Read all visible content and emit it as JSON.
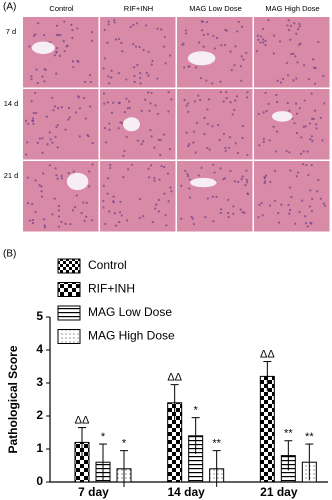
{
  "panel_a": {
    "label": "(A)",
    "columns": [
      "Control",
      "RIF+INH",
      "MAG Low Dose",
      "MAG High Dose"
    ],
    "rows": [
      "7 d",
      "14 d",
      "21 d"
    ]
  },
  "chart_data": {
    "type": "bar",
    "panel_label": "(B)",
    "ylabel": "Pathological Score",
    "categories": [
      "7 day",
      "14 day",
      "21 day"
    ],
    "series": [
      {
        "name": "Control",
        "color": "#000000",
        "pattern": "checker",
        "values": [
          0,
          0,
          0
        ]
      },
      {
        "name": "RIF+INH",
        "color": "#000000",
        "pattern": "checker-large",
        "values": [
          1.2,
          2.4,
          3.2
        ],
        "errors": [
          0.45,
          0.55,
          0.45
        ],
        "annotations": [
          "ΔΔ",
          "ΔΔ",
          "ΔΔ"
        ]
      },
      {
        "name": "MAG Low Dose",
        "color": "#000000",
        "pattern": "hstripe",
        "values": [
          0.6,
          1.4,
          0.8
        ],
        "errors": [
          0.55,
          0.55,
          0.45
        ],
        "annotations": [
          "*",
          "*",
          "**"
        ]
      },
      {
        "name": "MAG High Dose",
        "color": "#000000",
        "pattern": "dots",
        "values": [
          0.4,
          0.4,
          0.6
        ],
        "errors": [
          0.55,
          0.55,
          0.55
        ],
        "annotations": [
          "*",
          "**",
          "**"
        ]
      }
    ],
    "ylim": [
      0,
      5
    ],
    "yticks": [
      0,
      1,
      2,
      3,
      4,
      5
    ]
  }
}
